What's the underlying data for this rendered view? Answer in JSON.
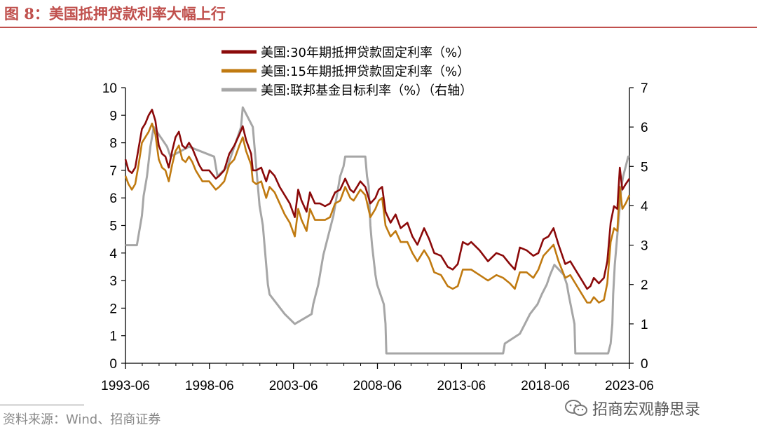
{
  "figure": {
    "title": "图 8：美国抵押贷款利率大幅上行",
    "source": "资料来源：Wind、招商证券",
    "watermark": "招商宏观静思录"
  },
  "colors": {
    "mortgage30": "#8b0a0a",
    "mortgage15": "#c07a10",
    "fedfunds": "#a6a6a6",
    "accent": "#c0504d"
  },
  "chart_data": {
    "type": "line",
    "title": "",
    "x_ticks": [
      "1993-06",
      "1998-06",
      "2003-06",
      "2008-06",
      "2013-06",
      "2018-06",
      "2023-06"
    ],
    "x_range": [
      1993.42,
      2023.42
    ],
    "ylim_left": [
      0,
      10
    ],
    "yticks_left": [
      0,
      1,
      2,
      3,
      4,
      5,
      6,
      7,
      8,
      9,
      10
    ],
    "ylim_right": [
      0,
      7
    ],
    "yticks_right": [
      0,
      1,
      2,
      3,
      4,
      5,
      6,
      7
    ],
    "series": [
      {
        "name": "美国:30年期抵押贷款固定利率（%）",
        "axis": "left",
        "color": "#8b0a0a",
        "points": [
          [
            1993.42,
            7.4
          ],
          [
            1993.6,
            7.0
          ],
          [
            1993.8,
            6.9
          ],
          [
            1994.0,
            7.1
          ],
          [
            1994.2,
            7.8
          ],
          [
            1994.4,
            8.5
          ],
          [
            1994.6,
            8.7
          ],
          [
            1994.8,
            9.0
          ],
          [
            1995.0,
            9.2
          ],
          [
            1995.2,
            8.8
          ],
          [
            1995.4,
            7.9
          ],
          [
            1995.6,
            7.6
          ],
          [
            1995.8,
            7.5
          ],
          [
            1996.0,
            7.1
          ],
          [
            1996.2,
            7.7
          ],
          [
            1996.4,
            8.2
          ],
          [
            1996.6,
            8.4
          ],
          [
            1996.8,
            7.9
          ],
          [
            1997.0,
            7.8
          ],
          [
            1997.2,
            8.0
          ],
          [
            1997.4,
            7.8
          ],
          [
            1997.6,
            7.5
          ],
          [
            1997.8,
            7.2
          ],
          [
            1998.0,
            7.0
          ],
          [
            1998.4,
            7.0
          ],
          [
            1998.8,
            6.7
          ],
          [
            1999.0,
            6.8
          ],
          [
            1999.3,
            7.0
          ],
          [
            1999.6,
            7.6
          ],
          [
            1999.9,
            7.9
          ],
          [
            2000.2,
            8.3
          ],
          [
            2000.4,
            8.6
          ],
          [
            2000.6,
            8.1
          ],
          [
            2000.9,
            7.6
          ],
          [
            2001.0,
            7.0
          ],
          [
            2001.2,
            7.0
          ],
          [
            2001.5,
            7.1
          ],
          [
            2001.8,
            6.6
          ],
          [
            2002.0,
            7.0
          ],
          [
            2002.3,
            6.8
          ],
          [
            2002.6,
            6.4
          ],
          [
            2002.9,
            6.1
          ],
          [
            2003.2,
            5.8
          ],
          [
            2003.5,
            5.3
          ],
          [
            2003.7,
            6.3
          ],
          [
            2003.9,
            5.9
          ],
          [
            2004.2,
            5.5
          ],
          [
            2004.4,
            6.2
          ],
          [
            2004.7,
            5.8
          ],
          [
            2005.0,
            5.8
          ],
          [
            2005.3,
            5.7
          ],
          [
            2005.6,
            5.8
          ],
          [
            2005.9,
            6.2
          ],
          [
            2006.2,
            6.3
          ],
          [
            2006.5,
            6.7
          ],
          [
            2006.8,
            6.3
          ],
          [
            2007.0,
            6.2
          ],
          [
            2007.4,
            6.6
          ],
          [
            2007.7,
            6.4
          ],
          [
            2008.0,
            5.8
          ],
          [
            2008.3,
            6.0
          ],
          [
            2008.5,
            6.3
          ],
          [
            2008.7,
            6.4
          ],
          [
            2008.9,
            5.5
          ],
          [
            2009.2,
            5.1
          ],
          [
            2009.5,
            5.4
          ],
          [
            2009.8,
            4.9
          ],
          [
            2010.2,
            5.1
          ],
          [
            2010.5,
            4.6
          ],
          [
            2010.8,
            4.3
          ],
          [
            2011.2,
            4.9
          ],
          [
            2011.5,
            4.5
          ],
          [
            2011.8,
            4.0
          ],
          [
            2012.2,
            3.9
          ],
          [
            2012.6,
            3.5
          ],
          [
            2012.9,
            3.4
          ],
          [
            2013.2,
            3.6
          ],
          [
            2013.5,
            4.4
          ],
          [
            2013.8,
            4.3
          ],
          [
            2014.0,
            4.4
          ],
          [
            2014.5,
            4.1
          ],
          [
            2015.0,
            3.7
          ],
          [
            2015.5,
            4.0
          ],
          [
            2015.9,
            3.9
          ],
          [
            2016.3,
            3.6
          ],
          [
            2016.6,
            3.4
          ],
          [
            2016.9,
            4.2
          ],
          [
            2017.3,
            4.1
          ],
          [
            2017.7,
            3.9
          ],
          [
            2018.0,
            4.0
          ],
          [
            2018.3,
            4.5
          ],
          [
            2018.6,
            4.6
          ],
          [
            2018.9,
            4.9
          ],
          [
            2019.2,
            4.3
          ],
          [
            2019.6,
            3.6
          ],
          [
            2019.9,
            3.7
          ],
          [
            2020.2,
            3.4
          ],
          [
            2020.6,
            3.0
          ],
          [
            2020.9,
            2.7
          ],
          [
            2021.1,
            2.8
          ],
          [
            2021.3,
            3.1
          ],
          [
            2021.6,
            2.9
          ],
          [
            2021.9,
            3.1
          ],
          [
            2022.1,
            3.7
          ],
          [
            2022.3,
            5.1
          ],
          [
            2022.5,
            5.7
          ],
          [
            2022.7,
            5.6
          ],
          [
            2022.85,
            7.1
          ],
          [
            2023.0,
            6.3
          ],
          [
            2023.2,
            6.5
          ],
          [
            2023.42,
            6.7
          ]
        ]
      },
      {
        "name": "美国:15年期抵押贷款固定利率（%）",
        "axis": "left",
        "color": "#c07a10",
        "points": [
          [
            1993.42,
            6.8
          ],
          [
            1993.6,
            6.5
          ],
          [
            1993.8,
            6.3
          ],
          [
            1994.0,
            6.5
          ],
          [
            1994.2,
            7.2
          ],
          [
            1994.4,
            8.0
          ],
          [
            1994.6,
            8.2
          ],
          [
            1994.8,
            8.4
          ],
          [
            1995.0,
            8.7
          ],
          [
            1995.2,
            8.3
          ],
          [
            1995.4,
            7.4
          ],
          [
            1995.6,
            7.1
          ],
          [
            1995.8,
            7.0
          ],
          [
            1996.0,
            6.6
          ],
          [
            1996.2,
            7.2
          ],
          [
            1996.4,
            7.7
          ],
          [
            1996.6,
            7.9
          ],
          [
            1996.8,
            7.4
          ],
          [
            1997.0,
            7.3
          ],
          [
            1997.2,
            7.5
          ],
          [
            1997.4,
            7.3
          ],
          [
            1997.6,
            7.0
          ],
          [
            1997.8,
            6.8
          ],
          [
            1998.0,
            6.6
          ],
          [
            1998.4,
            6.6
          ],
          [
            1998.8,
            6.3
          ],
          [
            1999.0,
            6.4
          ],
          [
            1999.3,
            6.6
          ],
          [
            1999.6,
            7.2
          ],
          [
            1999.9,
            7.4
          ],
          [
            2000.2,
            7.9
          ],
          [
            2000.4,
            8.2
          ],
          [
            2000.6,
            7.7
          ],
          [
            2000.9,
            7.2
          ],
          [
            2001.0,
            6.6
          ],
          [
            2001.2,
            6.5
          ],
          [
            2001.5,
            6.6
          ],
          [
            2001.8,
            6.0
          ],
          [
            2002.0,
            6.4
          ],
          [
            2002.3,
            6.2
          ],
          [
            2002.6,
            5.8
          ],
          [
            2002.9,
            5.4
          ],
          [
            2003.2,
            5.1
          ],
          [
            2003.5,
            4.6
          ],
          [
            2003.7,
            5.6
          ],
          [
            2003.9,
            5.2
          ],
          [
            2004.2,
            4.8
          ],
          [
            2004.4,
            5.6
          ],
          [
            2004.7,
            5.2
          ],
          [
            2005.0,
            5.2
          ],
          [
            2005.3,
            5.2
          ],
          [
            2005.6,
            5.3
          ],
          [
            2005.9,
            5.8
          ],
          [
            2006.2,
            5.9
          ],
          [
            2006.5,
            6.4
          ],
          [
            2006.8,
            6.0
          ],
          [
            2007.0,
            5.9
          ],
          [
            2007.4,
            6.3
          ],
          [
            2007.7,
            6.1
          ],
          [
            2008.0,
            5.3
          ],
          [
            2008.3,
            5.6
          ],
          [
            2008.5,
            5.9
          ],
          [
            2008.7,
            6.0
          ],
          [
            2008.9,
            5.0
          ],
          [
            2009.2,
            4.6
          ],
          [
            2009.5,
            4.8
          ],
          [
            2009.8,
            4.4
          ],
          [
            2010.2,
            4.4
          ],
          [
            2010.5,
            4.0
          ],
          [
            2010.8,
            3.7
          ],
          [
            2011.2,
            4.1
          ],
          [
            2011.5,
            3.8
          ],
          [
            2011.8,
            3.3
          ],
          [
            2012.2,
            3.2
          ],
          [
            2012.6,
            2.8
          ],
          [
            2012.9,
            2.7
          ],
          [
            2013.2,
            2.8
          ],
          [
            2013.5,
            3.4
          ],
          [
            2013.8,
            3.4
          ],
          [
            2014.0,
            3.4
          ],
          [
            2014.5,
            3.2
          ],
          [
            2015.0,
            3.0
          ],
          [
            2015.5,
            3.2
          ],
          [
            2015.9,
            3.1
          ],
          [
            2016.3,
            2.9
          ],
          [
            2016.6,
            2.7
          ],
          [
            2016.9,
            3.3
          ],
          [
            2017.3,
            3.3
          ],
          [
            2017.7,
            3.1
          ],
          [
            2018.0,
            3.4
          ],
          [
            2018.3,
            3.9
          ],
          [
            2018.6,
            4.1
          ],
          [
            2018.9,
            4.3
          ],
          [
            2019.2,
            3.7
          ],
          [
            2019.6,
            3.1
          ],
          [
            2019.9,
            3.2
          ],
          [
            2020.2,
            2.9
          ],
          [
            2020.6,
            2.5
          ],
          [
            2020.9,
            2.2
          ],
          [
            2021.1,
            2.2
          ],
          [
            2021.3,
            2.4
          ],
          [
            2021.6,
            2.2
          ],
          [
            2021.9,
            2.3
          ],
          [
            2022.1,
            2.9
          ],
          [
            2022.3,
            4.4
          ],
          [
            2022.5,
            4.9
          ],
          [
            2022.7,
            4.8
          ],
          [
            2022.85,
            6.4
          ],
          [
            2023.0,
            5.6
          ],
          [
            2023.2,
            5.8
          ],
          [
            2023.42,
            6.1
          ]
        ]
      },
      {
        "name": "美国:联邦基金目标利率（%）（右轴）",
        "axis": "right",
        "color": "#a6a6a6",
        "points": [
          [
            1993.42,
            3.0
          ],
          [
            1994.1,
            3.0
          ],
          [
            1994.2,
            3.25
          ],
          [
            1994.3,
            3.5
          ],
          [
            1994.4,
            3.75
          ],
          [
            1994.5,
            4.25
          ],
          [
            1994.7,
            4.75
          ],
          [
            1994.9,
            5.5
          ],
          [
            1995.1,
            6.0
          ],
          [
            1995.5,
            5.75
          ],
          [
            1995.9,
            5.5
          ],
          [
            1996.1,
            5.25
          ],
          [
            1997.2,
            5.5
          ],
          [
            1998.7,
            5.25
          ],
          [
            1998.8,
            5.0
          ],
          [
            1998.9,
            4.75
          ],
          [
            1999.5,
            5.0
          ],
          [
            1999.7,
            5.25
          ],
          [
            1999.9,
            5.5
          ],
          [
            2000.1,
            5.75
          ],
          [
            2000.3,
            6.0
          ],
          [
            2000.4,
            6.5
          ],
          [
            2001.0,
            6.0
          ],
          [
            2001.1,
            5.5
          ],
          [
            2001.2,
            5.0
          ],
          [
            2001.3,
            4.5
          ],
          [
            2001.4,
            4.0
          ],
          [
            2001.5,
            3.75
          ],
          [
            2001.6,
            3.5
          ],
          [
            2001.7,
            3.0
          ],
          [
            2001.8,
            2.5
          ],
          [
            2001.9,
            2.0
          ],
          [
            2002.0,
            1.75
          ],
          [
            2002.9,
            1.25
          ],
          [
            2003.5,
            1.0
          ],
          [
            2004.5,
            1.25
          ],
          [
            2004.6,
            1.5
          ],
          [
            2004.75,
            1.75
          ],
          [
            2004.9,
            2.0
          ],
          [
            2005.0,
            2.25
          ],
          [
            2005.2,
            2.75
          ],
          [
            2005.5,
            3.25
          ],
          [
            2005.8,
            3.75
          ],
          [
            2006.0,
            4.25
          ],
          [
            2006.2,
            4.75
          ],
          [
            2006.4,
            5.0
          ],
          [
            2006.5,
            5.25
          ],
          [
            2007.7,
            5.25
          ],
          [
            2007.8,
            4.75
          ],
          [
            2007.9,
            4.5
          ],
          [
            2008.0,
            3.5
          ],
          [
            2008.1,
            3.0
          ],
          [
            2008.3,
            2.25
          ],
          [
            2008.4,
            2.0
          ],
          [
            2008.8,
            1.5
          ],
          [
            2008.9,
            1.0
          ],
          [
            2008.95,
            0.25
          ],
          [
            2015.9,
            0.25
          ],
          [
            2016.0,
            0.5
          ],
          [
            2016.9,
            0.75
          ],
          [
            2017.2,
            1.0
          ],
          [
            2017.5,
            1.25
          ],
          [
            2017.95,
            1.5
          ],
          [
            2018.2,
            1.75
          ],
          [
            2018.5,
            2.0
          ],
          [
            2018.7,
            2.25
          ],
          [
            2018.95,
            2.5
          ],
          [
            2019.5,
            2.25
          ],
          [
            2019.7,
            2.0
          ],
          [
            2019.8,
            1.75
          ],
          [
            2020.15,
            1.0
          ],
          [
            2020.2,
            0.25
          ],
          [
            2022.15,
            0.25
          ],
          [
            2022.3,
            0.5
          ],
          [
            2022.4,
            1.0
          ],
          [
            2022.45,
            1.75
          ],
          [
            2022.55,
            2.5
          ],
          [
            2022.7,
            3.25
          ],
          [
            2022.85,
            4.0
          ],
          [
            2022.95,
            4.5
          ],
          [
            2023.05,
            4.75
          ],
          [
            2023.2,
            5.0
          ],
          [
            2023.35,
            5.25
          ],
          [
            2023.42,
            5.25
          ]
        ]
      }
    ]
  }
}
